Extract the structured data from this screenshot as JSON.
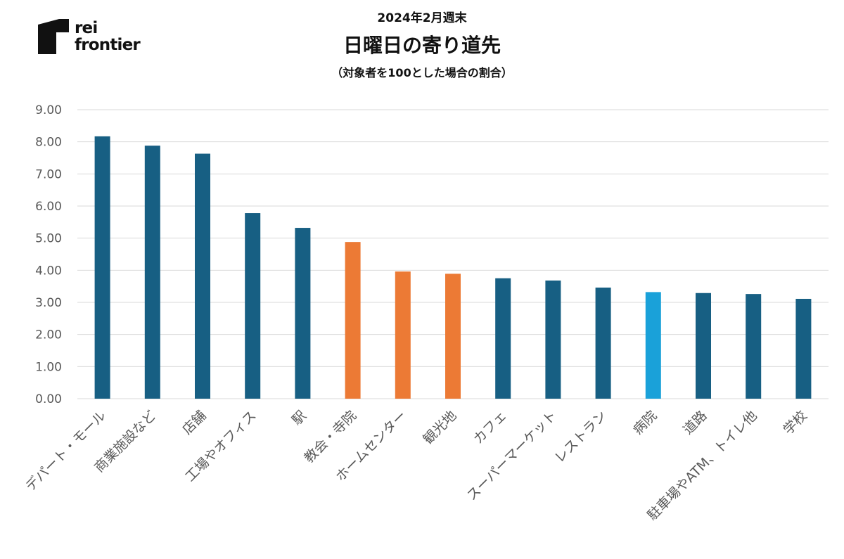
{
  "brand": {
    "line1": "rei",
    "line2": "frontier"
  },
  "chart_data": {
    "type": "bar",
    "subtitle_top": "2024年2月週末",
    "title": "日曜日の寄り道先",
    "note": "（対象者を100とした場合の割合）",
    "xlabel": "",
    "ylabel": "",
    "ylim": [
      0,
      9
    ],
    "yticks": [
      "0.00",
      "1.00",
      "2.00",
      "3.00",
      "4.00",
      "5.00",
      "6.00",
      "7.00",
      "8.00",
      "9.00"
    ],
    "grid": true,
    "legend": "none",
    "categories": [
      "デパート・モール",
      "商業施設など",
      "店舗",
      "工場やオフィス",
      "駅",
      "教会・寺院",
      "ホームセンター",
      "観光地",
      "カフェ",
      "スーパーマーケット",
      "レストラン",
      "病院",
      "道路",
      "駐車場やATM、トイレ他",
      "学校"
    ],
    "values": [
      8.17,
      7.88,
      7.63,
      5.78,
      5.32,
      4.88,
      3.96,
      3.89,
      3.75,
      3.68,
      3.46,
      3.32,
      3.29,
      3.26,
      3.11
    ],
    "bar_colors": [
      "#175f83",
      "#175f83",
      "#175f83",
      "#175f83",
      "#175f83",
      "#ec7a35",
      "#ec7a35",
      "#ec7a35",
      "#175f83",
      "#175f83",
      "#175f83",
      "#1aa1d9",
      "#175f83",
      "#175f83",
      "#175f83"
    ]
  },
  "colors": {
    "default_bar": "#175f83",
    "highlight_orange": "#ec7a35",
    "highlight_blue": "#1aa1d9",
    "grid": "#d9d9d9",
    "axis_text": "#595959"
  }
}
